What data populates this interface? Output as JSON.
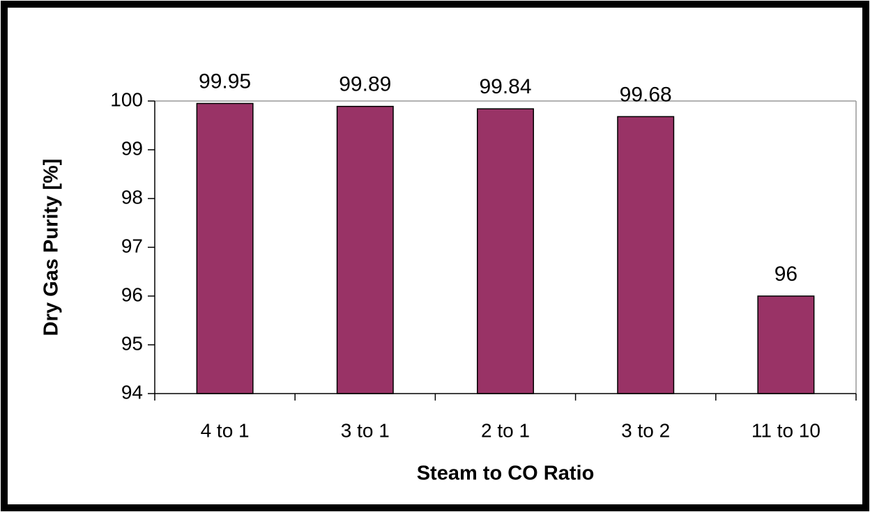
{
  "chart_data": {
    "type": "bar",
    "x_label": "Steam to CO Ratio",
    "y_label": "Dry Gas Purity [%]",
    "categories": [
      "4 to 1",
      "3 to 1",
      "2 to 1",
      "3 to 2",
      "11 to 10"
    ],
    "values": [
      99.95,
      99.89,
      99.84,
      99.68,
      96
    ],
    "color": "#993366",
    "ylim": [
      94,
      100
    ],
    "yticks": [
      94,
      95,
      96,
      97,
      98,
      99,
      100
    ],
    "grid": false
  }
}
